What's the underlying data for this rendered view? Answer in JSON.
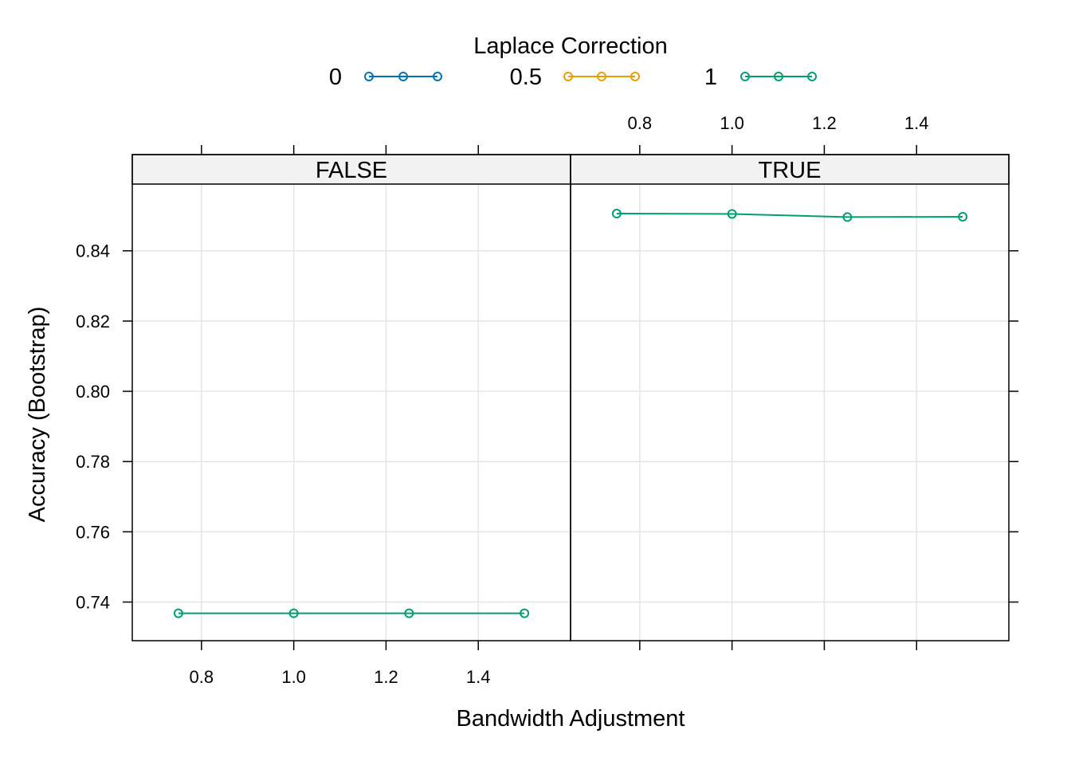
{
  "chart_data": {
    "type": "line",
    "legend": {
      "title": "Laplace Correction",
      "placement": "top",
      "entries": [
        {
          "label": "0",
          "color": "#0072B2"
        },
        {
          "label": "0.5",
          "color": "#E69F00"
        },
        {
          "label": "1",
          "color": "#009E73"
        }
      ]
    },
    "xlabel": "Bandwidth Adjustment",
    "ylabel": "Accuracy (Bootstrap)",
    "xlim": [
      0.65,
      1.6
    ],
    "ylim": [
      0.729,
      0.859
    ],
    "x_ticks": [
      0.8,
      1.0,
      1.2,
      1.4
    ],
    "x_tick_labels": [
      "0.8",
      "1.0",
      "1.2",
      "1.4"
    ],
    "y_ticks": [
      0.74,
      0.76,
      0.78,
      0.8,
      0.82,
      0.84
    ],
    "y_tick_labels": [
      "0.74",
      "0.76",
      "0.78",
      "0.80",
      "0.82",
      "0.84"
    ],
    "grid": true,
    "panels": [
      {
        "strip": "FALSE",
        "series": [
          {
            "legend_label": "1",
            "color": "#009E73",
            "x": [
              0.75,
              1.0,
              1.25,
              1.5
            ],
            "y": [
              0.7368,
              0.7368,
              0.7368,
              0.7368
            ]
          }
        ]
      },
      {
        "strip": "TRUE",
        "series": [
          {
            "legend_label": "1",
            "color": "#009E73",
            "x": [
              0.75,
              1.0,
              1.25,
              1.5
            ],
            "y": [
              0.8506,
              0.8505,
              0.8496,
              0.8497
            ]
          }
        ]
      }
    ]
  }
}
